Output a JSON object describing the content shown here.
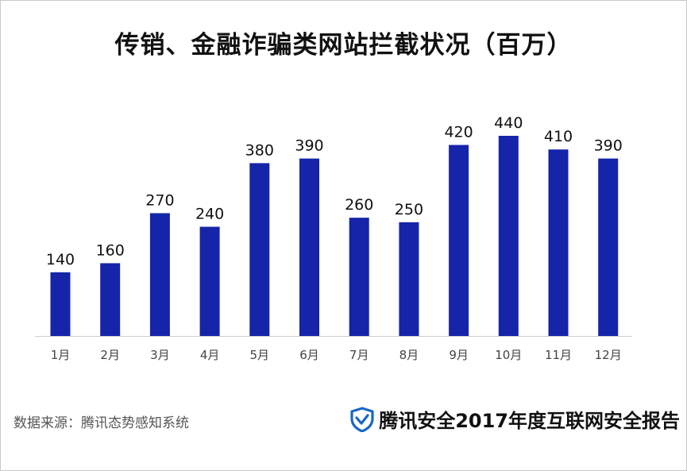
{
  "title": "传销、金融诈骗类网站拦截状况（百万）",
  "source": "数据来源：腾讯态势感知系统",
  "brand": {
    "text": "腾讯安全2017年度互联网安全报告",
    "icon": "shield-icon",
    "color": "#1a66c8"
  },
  "chart_data": {
    "type": "bar",
    "title": "传销、金融诈骗类网站拦截状况（百万）",
    "categories": [
      "1月",
      "2月",
      "3月",
      "4月",
      "5月",
      "6月",
      "7月",
      "8月",
      "9月",
      "10月",
      "11月",
      "12月"
    ],
    "values": [
      140,
      160,
      270,
      240,
      380,
      390,
      260,
      250,
      420,
      440,
      410,
      390
    ],
    "xlabel": "",
    "ylabel": "",
    "ylim": [
      0,
      440
    ],
    "grid": false,
    "legend": "none",
    "bar_color": "#1524a8"
  }
}
